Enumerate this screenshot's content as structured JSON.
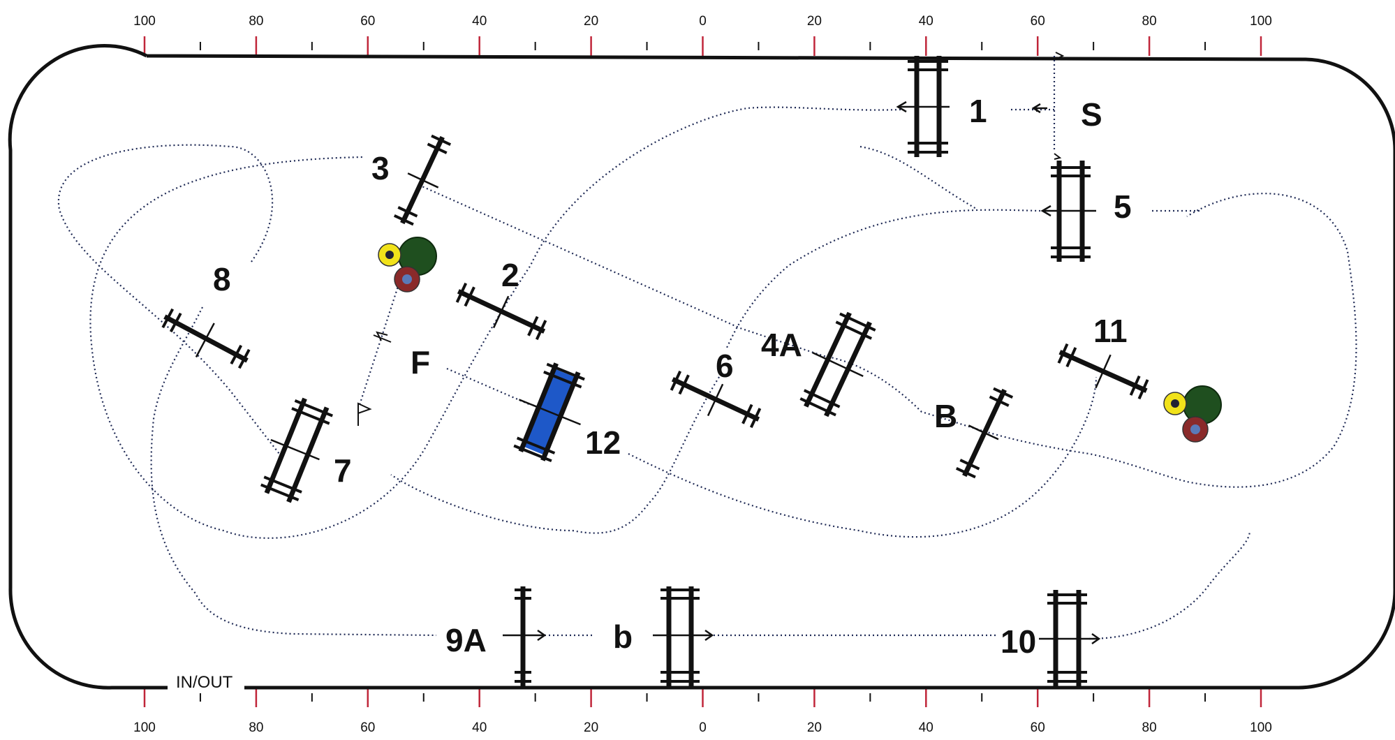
{
  "course": {
    "scale_labels": [
      "100",
      "80",
      "60",
      "40",
      "20",
      "0",
      "20",
      "40",
      "60",
      "80",
      "100"
    ],
    "colors": {
      "fence": "#111111",
      "arena": "#111111",
      "path": "#1f2a55",
      "scale_tick_red": "#c0263a",
      "water_fill": "#1e58c8",
      "bush_green": "#1f4f1f",
      "flower_yellow": "#f1e21a",
      "flower_red": "#8a2a2a"
    },
    "gate_label": "IN/OUT",
    "obstacles": [
      {
        "id": "1",
        "label": "1"
      },
      {
        "id": "S",
        "label": "S"
      },
      {
        "id": "3",
        "label": "3"
      },
      {
        "id": "5",
        "label": "5"
      },
      {
        "id": "8",
        "label": "8"
      },
      {
        "id": "2",
        "label": "2"
      },
      {
        "id": "4A",
        "label": "4A"
      },
      {
        "id": "11",
        "label": "11"
      },
      {
        "id": "F",
        "label": "F"
      },
      {
        "id": "6",
        "label": "6"
      },
      {
        "id": "B",
        "label": "B"
      },
      {
        "id": "12",
        "label": "12"
      },
      {
        "id": "7",
        "label": "7"
      },
      {
        "id": "9A",
        "label": "9A"
      },
      {
        "id": "b",
        "label": "b"
      },
      {
        "id": "10",
        "label": "10"
      }
    ],
    "decorations": [
      "flower-bush-left",
      "flower-bush-right"
    ]
  }
}
